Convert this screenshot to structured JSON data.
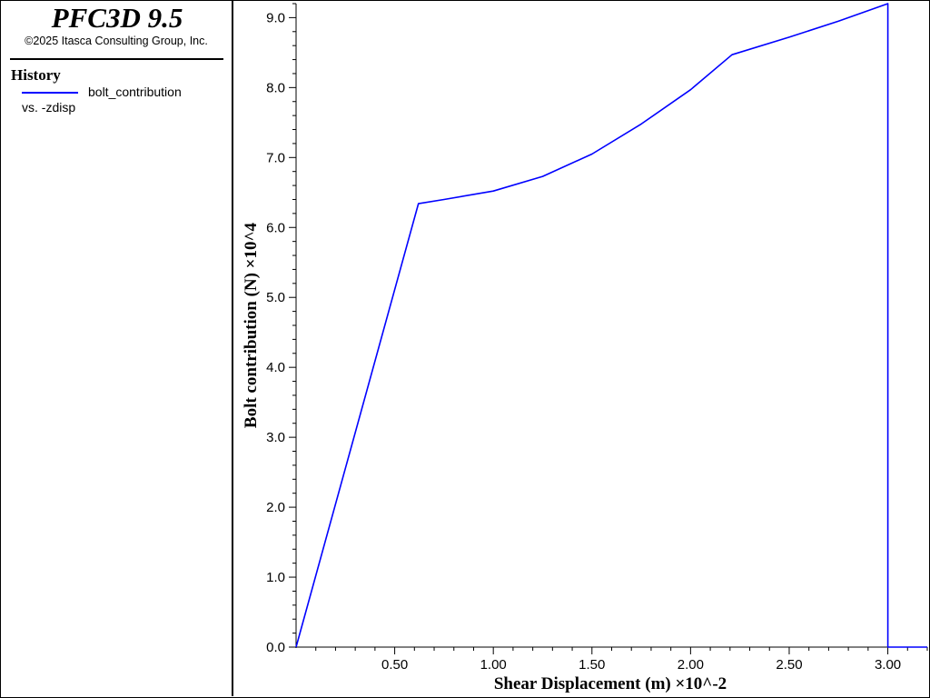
{
  "app": {
    "title": "PFC3D 9.5",
    "copyright": "©2025 Itasca Consulting Group, Inc."
  },
  "legend": {
    "heading": "History",
    "series_label": "bolt_contribution",
    "vs_label": "vs. -zdisp",
    "line_color": "#0000ff"
  },
  "chart_data": {
    "type": "line",
    "title": "",
    "xlabel": "Shear Displacement (m) ×10^-2",
    "ylabel": "Bolt contribution (N) ×10^4",
    "xlim": [
      0.0,
      3.2
    ],
    "ylim": [
      0.0,
      9.2
    ],
    "x_ticks": [
      0.5,
      1.0,
      1.5,
      2.0,
      2.5,
      3.0
    ],
    "x_tick_labels": [
      "0.50",
      "1.00",
      "1.50",
      "2.00",
      "2.50",
      "3.00"
    ],
    "y_ticks": [
      0.0,
      1.0,
      2.0,
      3.0,
      4.0,
      5.0,
      6.0,
      7.0,
      8.0,
      9.0
    ],
    "y_tick_labels": [
      "0.0",
      "1.0",
      "2.0",
      "3.0",
      "4.0",
      "5.0",
      "6.0",
      "7.0",
      "8.0",
      "9.0"
    ],
    "grid": false,
    "legend_position": "left-panel",
    "series": [
      {
        "name": "bolt_contribution",
        "color": "#0000ff",
        "x": [
          0.0,
          0.62,
          0.75,
          1.0,
          1.25,
          1.5,
          1.75,
          2.0,
          2.21,
          2.5,
          2.75,
          3.0,
          3.0,
          3.2
        ],
        "y": [
          0.0,
          6.34,
          6.4,
          6.52,
          6.73,
          7.05,
          7.48,
          7.97,
          8.47,
          8.72,
          8.95,
          9.2,
          0.0,
          0.0
        ]
      }
    ]
  }
}
